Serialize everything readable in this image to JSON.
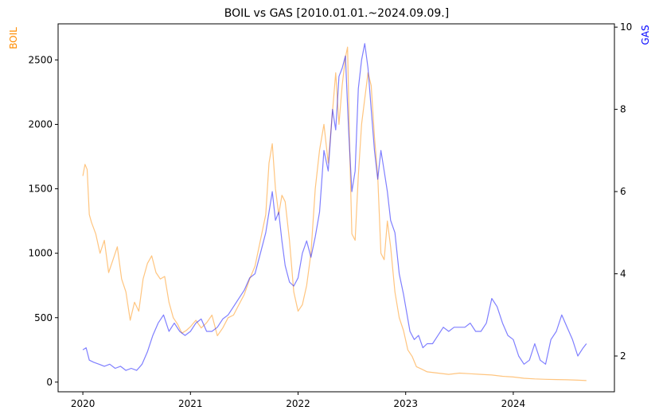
{
  "chart_data": {
    "type": "line",
    "title": "BOIL vs GAS [2010.01.01.~2024.09.09.]",
    "x_tick_labels": [
      "2020",
      "2021",
      "2022",
      "2023",
      "2024"
    ],
    "x_tick_values": [
      2020.0,
      2021.0,
      2022.0,
      2023.0,
      2024.0
    ],
    "xlim": [
      2019.77,
      2024.94
    ],
    "left_axis": {
      "label": "BOIL",
      "color": "#ff8c00",
      "ylim": [
        -75,
        2780
      ],
      "ticks": [
        0,
        500,
        1000,
        1500,
        2000,
        2500
      ],
      "tick_labels": [
        "0",
        "500",
        "1000",
        "1500",
        "2000",
        "2500"
      ]
    },
    "right_axis": {
      "label": "GAS",
      "color": "#0000ff",
      "ylim": [
        1.13,
        10.08
      ],
      "ticks": [
        2,
        4,
        6,
        8,
        10
      ],
      "tick_labels": [
        "2",
        "4",
        "6",
        "8",
        "10"
      ]
    },
    "grid": false,
    "series": [
      {
        "name": "BOIL",
        "axis": "left",
        "color": "#ff8c00",
        "opacity": 0.5,
        "x": [
          2020.0,
          2020.02,
          2020.04,
          2020.06,
          2020.08,
          2020.12,
          2020.16,
          2020.2,
          2020.24,
          2020.28,
          2020.32,
          2020.36,
          2020.4,
          2020.44,
          2020.48,
          2020.52,
          2020.56,
          2020.6,
          2020.64,
          2020.68,
          2020.72,
          2020.76,
          2020.8,
          2020.84,
          2020.88,
          2020.92,
          2020.96,
          2021.0,
          2021.05,
          2021.1,
          2021.15,
          2021.2,
          2021.25,
          2021.3,
          2021.35,
          2021.4,
          2021.45,
          2021.5,
          2021.55,
          2021.6,
          2021.65,
          2021.7,
          2021.73,
          2021.76,
          2021.79,
          2021.82,
          2021.85,
          2021.88,
          2021.92,
          2021.96,
          2022.0,
          2022.04,
          2022.08,
          2022.12,
          2022.16,
          2022.2,
          2022.24,
          2022.28,
          2022.32,
          2022.35,
          2022.38,
          2022.41,
          2022.44,
          2022.46,
          2022.48,
          2022.5,
          2022.53,
          2022.56,
          2022.59,
          2022.62,
          2022.65,
          2022.68,
          2022.71,
          2022.74,
          2022.77,
          2022.8,
          2022.83,
          2022.86,
          2022.9,
          2022.94,
          2022.98,
          2023.02,
          2023.06,
          2023.1,
          2023.15,
          2023.2,
          2023.3,
          2023.4,
          2023.5,
          2023.6,
          2023.7,
          2023.8,
          2023.9,
          2024.0,
          2024.1,
          2024.2,
          2024.3,
          2024.4,
          2024.5,
          2024.6,
          2024.68
        ],
        "values": [
          1600,
          1690,
          1650,
          1300,
          1240,
          1150,
          1000,
          1100,
          850,
          950,
          1050,
          800,
          700,
          480,
          620,
          550,
          800,
          920,
          980,
          850,
          800,
          820,
          620,
          500,
          450,
          380,
          400,
          430,
          480,
          420,
          460,
          520,
          360,
          420,
          500,
          520,
          600,
          680,
          800,
          900,
          1100,
          1300,
          1700,
          1850,
          1500,
          1300,
          1450,
          1400,
          1100,
          700,
          550,
          600,
          750,
          1000,
          1500,
          1800,
          2000,
          1700,
          2100,
          2400,
          2000,
          2300,
          2520,
          2600,
          1800,
          1150,
          1100,
          1600,
          2000,
          2200,
          2400,
          2300,
          1900,
          1600,
          1000,
          950,
          1250,
          1050,
          700,
          500,
          400,
          250,
          200,
          120,
          100,
          80,
          70,
          60,
          70,
          65,
          60,
          55,
          45,
          40,
          30,
          25,
          22,
          20,
          18,
          15,
          12
        ]
      },
      {
        "name": "GAS",
        "axis": "right",
        "color": "#0000ff",
        "opacity": 0.5,
        "x": [
          2020.0,
          2020.03,
          2020.06,
          2020.1,
          2020.15,
          2020.2,
          2020.25,
          2020.3,
          2020.35,
          2020.4,
          2020.45,
          2020.5,
          2020.55,
          2020.6,
          2020.65,
          2020.7,
          2020.75,
          2020.8,
          2020.85,
          2020.9,
          2020.95,
          2021.0,
          2021.05,
          2021.1,
          2021.15,
          2021.2,
          2021.25,
          2021.3,
          2021.35,
          2021.4,
          2021.45,
          2021.5,
          2021.55,
          2021.6,
          2021.65,
          2021.7,
          2021.73,
          2021.76,
          2021.79,
          2021.82,
          2021.85,
          2021.88,
          2021.92,
          2021.96,
          2022.0,
          2022.04,
          2022.08,
          2022.12,
          2022.16,
          2022.2,
          2022.24,
          2022.28,
          2022.32,
          2022.35,
          2022.38,
          2022.41,
          2022.44,
          2022.47,
          2022.5,
          2022.53,
          2022.56,
          2022.59,
          2022.62,
          2022.65,
          2022.68,
          2022.71,
          2022.74,
          2022.77,
          2022.8,
          2022.83,
          2022.86,
          2022.9,
          2022.94,
          2022.98,
          2023.0,
          2023.04,
          2023.08,
          2023.12,
          2023.16,
          2023.2,
          2023.25,
          2023.3,
          2023.35,
          2023.4,
          2023.45,
          2023.5,
          2023.55,
          2023.6,
          2023.65,
          2023.7,
          2023.75,
          2023.8,
          2023.85,
          2023.9,
          2023.95,
          2024.0,
          2024.05,
          2024.1,
          2024.15,
          2024.2,
          2024.25,
          2024.3,
          2024.35,
          2024.4,
          2024.45,
          2024.5,
          2024.55,
          2024.6,
          2024.65,
          2024.68
        ],
        "values": [
          2.15,
          2.2,
          1.9,
          1.85,
          1.8,
          1.75,
          1.8,
          1.7,
          1.75,
          1.65,
          1.7,
          1.65,
          1.8,
          2.1,
          2.5,
          2.8,
          3.0,
          2.6,
          2.8,
          2.6,
          2.5,
          2.6,
          2.8,
          2.9,
          2.6,
          2.6,
          2.7,
          2.9,
          3.0,
          3.2,
          3.4,
          3.6,
          3.9,
          4.0,
          4.5,
          5.0,
          5.5,
          6.0,
          5.3,
          5.5,
          4.8,
          4.2,
          3.8,
          3.7,
          3.9,
          4.5,
          4.8,
          4.4,
          4.9,
          5.5,
          7.0,
          6.5,
          8.0,
          7.5,
          8.8,
          9.0,
          9.3,
          7.5,
          6.0,
          6.5,
          8.5,
          9.2,
          9.6,
          9.0,
          8.0,
          7.0,
          6.3,
          7.0,
          6.5,
          6.0,
          5.3,
          5.0,
          4.0,
          3.5,
          3.2,
          2.6,
          2.4,
          2.5,
          2.2,
          2.3,
          2.3,
          2.5,
          2.7,
          2.6,
          2.7,
          2.7,
          2.7,
          2.8,
          2.6,
          2.6,
          2.8,
          3.4,
          3.2,
          2.8,
          2.5,
          2.4,
          2.0,
          1.8,
          1.9,
          2.3,
          1.9,
          1.8,
          2.4,
          2.6,
          3.0,
          2.7,
          2.4,
          2.0,
          2.2,
          2.3
        ]
      }
    ]
  }
}
